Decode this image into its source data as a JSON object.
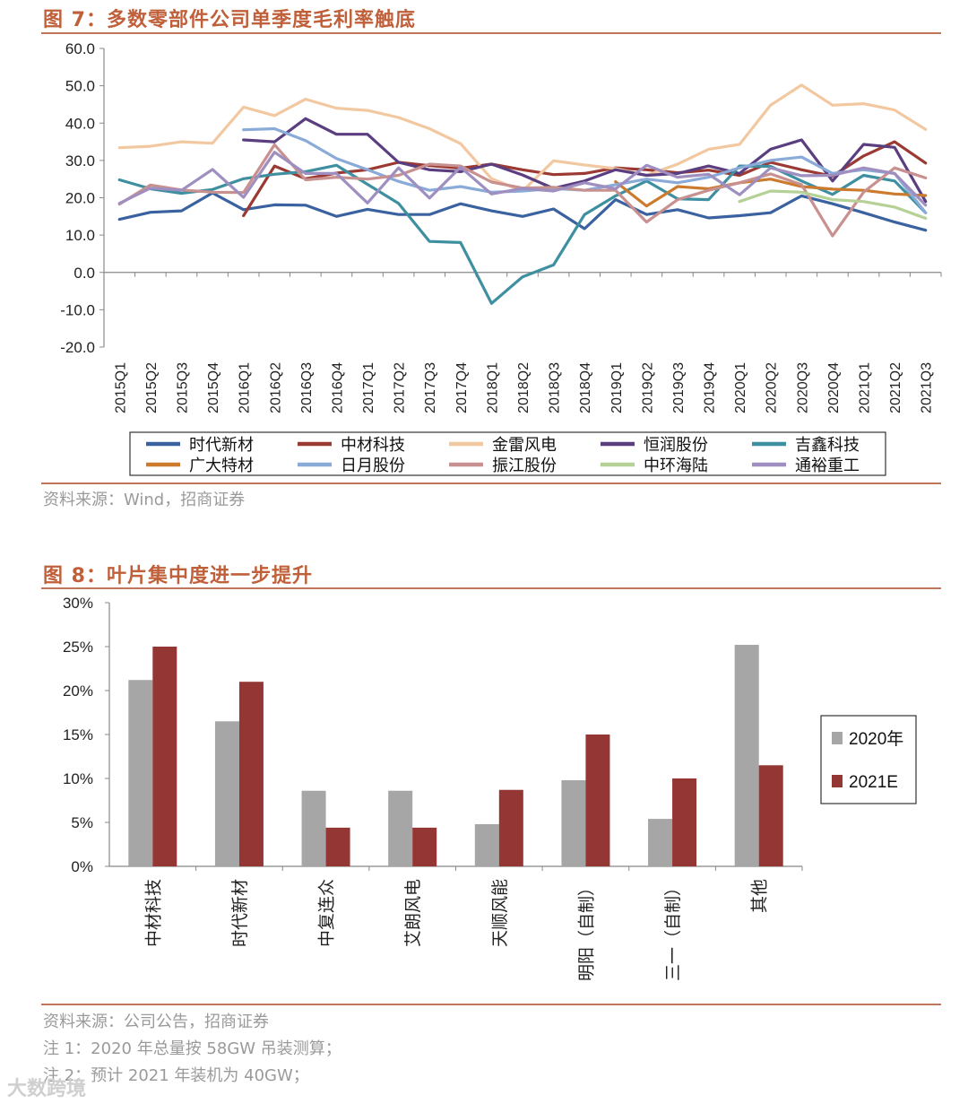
{
  "fig7": {
    "title": "图 7：多数零部件公司单季度毛利率触底",
    "source": "资料来源：Wind，招商证券"
  },
  "fig8": {
    "title": "图 8：叶片集中度进一步提升",
    "source": "资料来源：公司公告，招商证券",
    "note1": "注 1：2020 年总量按 58GW 吊装测算；",
    "note2": "注 2：预计 2021 年装机为 40GW；"
  },
  "watermark": "大数跨境",
  "chart_data": [
    {
      "type": "line",
      "title": "多数零部件公司单季度毛利率触底",
      "ylim": [
        -20,
        60
      ],
      "yticks": [
        "60.0",
        "50.0",
        "40.0",
        "30.0",
        "20.0",
        "10.0",
        "0.0",
        "-10.0",
        "-20.0"
      ],
      "x": [
        "2015Q1",
        "2015Q2",
        "2015Q3",
        "2015Q4",
        "2016Q1",
        "2016Q2",
        "2016Q3",
        "2016Q4",
        "2017Q1",
        "2017Q2",
        "2017Q3",
        "2017Q4",
        "2018Q1",
        "2018Q2",
        "2018Q3",
        "2018Q4",
        "2019Q1",
        "2019Q2",
        "2019Q3",
        "2019Q4",
        "2020Q1",
        "2020Q2",
        "2020Q3",
        "2020Q4",
        "2021Q1",
        "2021Q2",
        "2021Q3"
      ],
      "series": [
        {
          "name": "时代新材",
          "color": "#3b62a0",
          "values": [
            14.2,
            16.1,
            16.5,
            21.3,
            16.8,
            18.1,
            18.0,
            15.0,
            16.9,
            15.5,
            15.5,
            18.4,
            16.5,
            15.0,
            17.0,
            11.7,
            19.5,
            15.5,
            16.8,
            14.6,
            15.2,
            16.0,
            20.5,
            18.4,
            16.0,
            13.5,
            11.3
          ]
        },
        {
          "name": "中材科技",
          "color": "#9b3a33",
          "values": [
            null,
            null,
            null,
            null,
            15.2,
            28.5,
            25.1,
            26.6,
            27.5,
            29.5,
            28.6,
            27.9,
            29.0,
            27.5,
            26.2,
            26.5,
            28.0,
            27.5,
            26.7,
            27.4,
            26.0,
            29.5,
            27.5,
            25.8,
            31.2,
            35.0,
            29.3
          ]
        },
        {
          "name": "金雷风电",
          "color": "#f2c8a0",
          "values": [
            33.4,
            33.8,
            35.0,
            34.6,
            44.3,
            42.0,
            46.4,
            44.0,
            43.4,
            41.5,
            38.5,
            34.5,
            25.1,
            21.8,
            29.9,
            28.8,
            27.8,
            26.0,
            29.0,
            33.0,
            34.3,
            44.8,
            50.2,
            44.8,
            45.2,
            43.5,
            38.3
          ]
        },
        {
          "name": "恒润股份",
          "color": "#5b3e80",
          "values": [
            null,
            null,
            null,
            null,
            35.5,
            35.0,
            41.2,
            37.0,
            37.0,
            29.5,
            27.5,
            27.0,
            29.0,
            26.1,
            22.5,
            24.5,
            27.5,
            26.0,
            26.5,
            28.5,
            26.5,
            33.0,
            35.5,
            24.5,
            34.3,
            33.5,
            19.0
          ]
        },
        {
          "name": "吉鑫科技",
          "color": "#3e8fa0",
          "values": [
            24.8,
            22.4,
            21.2,
            22.2,
            25.1,
            26.3,
            27.0,
            28.7,
            23.6,
            18.5,
            8.3,
            8.0,
            -8.3,
            -1.2,
            2.0,
            15.5,
            20.5,
            24.5,
            19.7,
            19.5,
            28.5,
            28.4,
            24.5,
            20.9,
            26.0,
            24.5,
            16.0
          ]
        },
        {
          "name": "广大特材",
          "color": "#cc7a2e",
          "values": [
            null,
            null,
            null,
            null,
            null,
            null,
            null,
            null,
            null,
            null,
            null,
            null,
            null,
            null,
            null,
            null,
            24.3,
            17.8,
            23.0,
            22.4,
            24.0,
            25.0,
            23.0,
            22.3,
            22.0,
            21.0,
            20.6
          ]
        },
        {
          "name": "日月股份",
          "color": "#8aaad8",
          "values": [
            null,
            null,
            null,
            null,
            38.2,
            38.5,
            35.3,
            30.5,
            27.5,
            24.4,
            22.0,
            23.0,
            21.5,
            21.8,
            22.5,
            22.0,
            23.5,
            25.0,
            24.0,
            25.5,
            28.0,
            30.0,
            30.9,
            26.5,
            27.5,
            26.5,
            16.0
          ]
        },
        {
          "name": "振江股份",
          "color": "#c8908e",
          "values": [
            18.3,
            23.4,
            22.1,
            21.5,
            21.4,
            34.2,
            24.8,
            25.5,
            25.0,
            26.0,
            29.0,
            28.5,
            24.2,
            22.6,
            22.8,
            22.0,
            22.0,
            13.5,
            19.5,
            22.0,
            24.0,
            26.4,
            23.5,
            9.8,
            21.5,
            28.0,
            25.3
          ]
        },
        {
          "name": "中环海陆",
          "color": "#b5d196",
          "values": [
            null,
            null,
            null,
            null,
            null,
            null,
            null,
            null,
            null,
            null,
            null,
            null,
            null,
            null,
            null,
            null,
            null,
            null,
            null,
            null,
            19.0,
            21.8,
            21.5,
            19.5,
            19.0,
            17.5,
            14.5
          ]
        },
        {
          "name": "通裕重工",
          "color": "#9e8fc0",
          "values": [
            18.5,
            22.6,
            22.0,
            27.6,
            20.1,
            32.2,
            26.5,
            26.5,
            18.6,
            28.0,
            19.9,
            28.2,
            21.0,
            22.5,
            21.8,
            24.0,
            22.4,
            28.7,
            25.5,
            26.3,
            20.8,
            28.0,
            25.9,
            26.0,
            28.0,
            26.5,
            18.0
          ]
        }
      ]
    },
    {
      "type": "bar",
      "title": "叶片集中度进一步提升",
      "ylim": [
        0,
        30
      ],
      "yticks": [
        "30%",
        "25%",
        "20%",
        "15%",
        "10%",
        "5%",
        "0%"
      ],
      "categories": [
        "中材科技",
        "时代新材",
        "中复连众",
        "艾朗风电",
        "天顺风能",
        "明阳（自制）",
        "三一（自制）",
        "其他"
      ],
      "series": [
        {
          "name": "2020年",
          "color": "#a6a6a6",
          "values": [
            21.2,
            16.5,
            8.6,
            8.6,
            4.8,
            9.8,
            5.4,
            25.2
          ]
        },
        {
          "name": "2021E",
          "color": "#943634",
          "values": [
            25.0,
            21.0,
            4.4,
            4.4,
            8.7,
            15.0,
            10.0,
            11.5
          ]
        }
      ]
    }
  ]
}
